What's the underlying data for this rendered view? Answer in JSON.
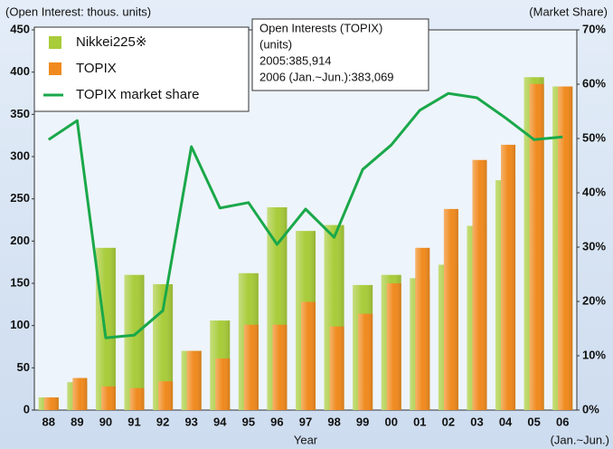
{
  "chart_data": {
    "type": "bar",
    "y_axis_label": "(Open Interest: thous. units)",
    "y2_axis_label": "(Market Share)",
    "x_axis_label": "Year",
    "x_note": "(Jan.~Jun.)",
    "annotation": [
      "Open Interests (TOPIX)",
      "(units)",
      "2005:385,914",
      "2006 (Jan.~Jun.):383,069"
    ],
    "categories": [
      "88",
      "89",
      "90",
      "91",
      "92",
      "93",
      "94",
      "95",
      "96",
      "97",
      "98",
      "99",
      "00",
      "01",
      "02",
      "03",
      "04",
      "05",
      "06"
    ],
    "series": [
      {
        "name": "Nikkei225※",
        "color": "#a8cc3a",
        "values": [
          15,
          33,
          192,
          160,
          149,
          70,
          106,
          162,
          240,
          212,
          219,
          148,
          160,
          156,
          172,
          218,
          272,
          394,
          383
        ]
      },
      {
        "name": "TOPIX",
        "color": "#f08a1e",
        "values": [
          15,
          38,
          28,
          26,
          34,
          70,
          61,
          101,
          101,
          128,
          99,
          114,
          150,
          192,
          238,
          296,
          314,
          386,
          383
        ]
      },
      {
        "name": "TOPIX market share",
        "color": "#1aa84a",
        "axis": "y2",
        "type": "line",
        "values": [
          49.8,
          53.3,
          13.3,
          13.8,
          18.3,
          48.5,
          37.2,
          38.2,
          30.5,
          37,
          31.8,
          44.3,
          48.8,
          55.2,
          58.3,
          57.5,
          53.8,
          49.8,
          50.3
        ]
      }
    ],
    "ylim": [
      0,
      450
    ],
    "yticks": [
      0,
      50,
      100,
      150,
      200,
      250,
      300,
      350,
      400,
      450
    ],
    "y2lim": [
      0,
      70
    ],
    "y2ticks": [
      {
        "value": 0,
        "label": "0%"
      },
      {
        "value": 10,
        "label": "10%"
      },
      {
        "value": 20,
        "label": "20%"
      },
      {
        "value": 30,
        "label": "30%"
      },
      {
        "value": 40,
        "label": "40%"
      },
      {
        "value": 50,
        "label": "50%"
      },
      {
        "value": 60,
        "label": "60%"
      },
      {
        "value": 70,
        "label": "70%"
      }
    ],
    "legend": "upper left"
  }
}
